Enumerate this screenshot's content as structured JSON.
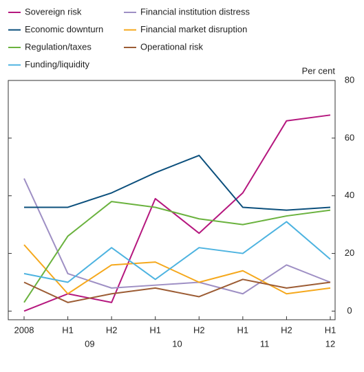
{
  "chart_data": {
    "type": "line",
    "y_axis_label": "Per cent",
    "categories": [
      "2008",
      "H1",
      "H2",
      "H1",
      "H2",
      "H1",
      "H2",
      "H1"
    ],
    "x_groups": [
      {
        "label": "09",
        "from": 1,
        "to": 2
      },
      {
        "label": "10",
        "from": 3,
        "to": 4
      },
      {
        "label": "11",
        "from": 5,
        "to": 6
      },
      {
        "label": "12",
        "from": 7,
        "to": 7
      }
    ],
    "ylim": [
      -3,
      80
    ],
    "yticks": [
      0,
      20,
      40,
      60,
      80
    ],
    "y_axis_side": "right",
    "series": [
      {
        "name": "Sovereign risk",
        "color": "#b5177e",
        "values": [
          0,
          6,
          3,
          39,
          27,
          41,
          66,
          68
        ]
      },
      {
        "name": "Financial institution distress",
        "color": "#9e8fc4",
        "values": [
          46,
          13,
          8,
          9,
          10,
          6,
          16,
          10
        ]
      },
      {
        "name": "Economic downturn",
        "color": "#0b4f7c",
        "values": [
          36,
          36,
          41,
          48,
          54,
          36,
          35,
          36
        ]
      },
      {
        "name": "Financial market disruption",
        "color": "#f5a81c",
        "values": [
          23,
          6,
          16,
          17,
          10,
          14,
          6,
          8
        ]
      },
      {
        "name": "Regulation/taxes",
        "color": "#6ab23e",
        "values": [
          3,
          26,
          38,
          36,
          32,
          30,
          33,
          35
        ]
      },
      {
        "name": "Operational risk",
        "color": "#9c5c34",
        "values": [
          10,
          3,
          6,
          8,
          5,
          11,
          8,
          10
        ]
      },
      {
        "name": "Funding/liquidity",
        "color": "#4db3e0",
        "values": [
          13,
          10,
          22,
          11,
          22,
          20,
          31,
          18
        ]
      }
    ]
  }
}
